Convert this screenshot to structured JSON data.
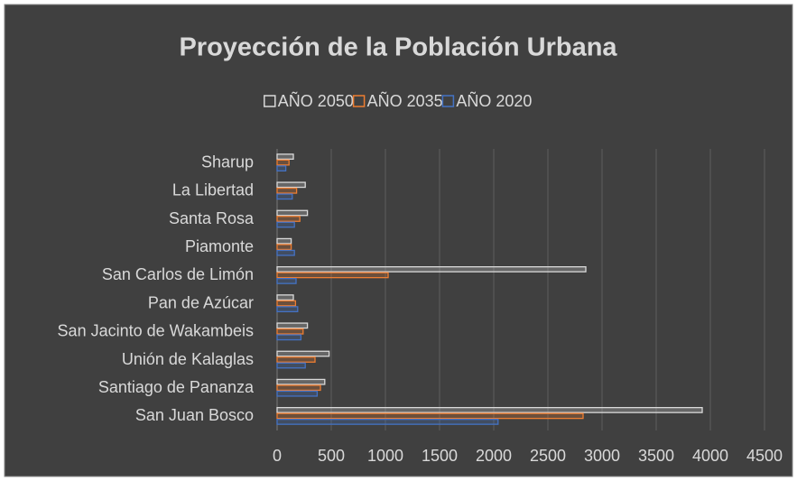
{
  "chart_data": {
    "type": "bar",
    "orientation": "horizontal",
    "title": "Proyección de la Población Urbana",
    "categories": [
      "Sharup",
      "La Libertad",
      "Santa Rosa",
      "Piamonte",
      "San Carlos de Limón",
      "Pan de Azúcar",
      "San Jacinto de Wakambeis",
      "Unión de Kalaglas",
      "Santiago de Pananza",
      "San Juan Bosco"
    ],
    "series": [
      {
        "name": "AÑO 2050",
        "color": "#d9d9d9",
        "values": [
          150,
          260,
          280,
          130,
          2850,
          150,
          280,
          480,
          440,
          3925
        ]
      },
      {
        "name": "AÑO 2035",
        "color": "#ed7d31",
        "values": [
          110,
          180,
          210,
          130,
          1025,
          170,
          240,
          350,
          400,
          2825
        ]
      },
      {
        "name": "AÑO 2020",
        "color": "#4472c4",
        "values": [
          80,
          140,
          160,
          160,
          175,
          190,
          220,
          260,
          370,
          2040
        ]
      }
    ],
    "xlim": [
      0,
      4500
    ],
    "xticks": [
      0,
      500,
      1000,
      1500,
      2000,
      2500,
      3000,
      3500,
      4000,
      4500
    ],
    "grid": true,
    "legend": "top"
  }
}
